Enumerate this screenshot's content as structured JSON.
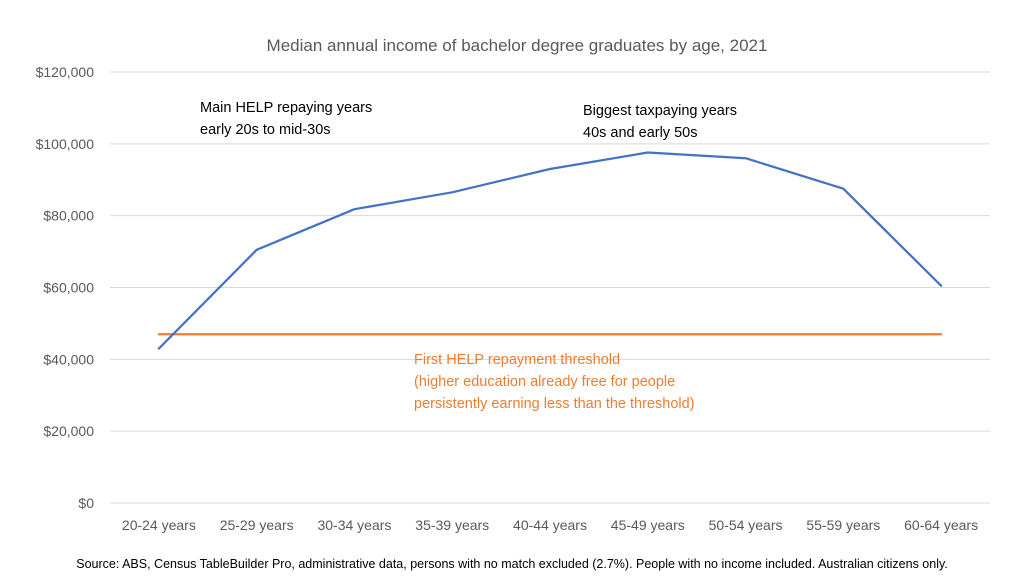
{
  "chart_data": {
    "type": "line",
    "title": "Median annual income of bachelor degree graduates by age, 2021",
    "categories": [
      "20-24 years",
      "25-29 years",
      "30-34 years",
      "35-39 years",
      "40-44 years",
      "45-49 years",
      "50-54 years",
      "55-59 years",
      "60-64 years"
    ],
    "series": [
      {
        "values": [
          43000,
          70500,
          81800,
          86500,
          93000,
          97600,
          96000,
          87500,
          60500
        ],
        "color": "#4472C4"
      },
      {
        "values": [
          47000,
          47000,
          47000,
          47000,
          47000,
          47000,
          47000,
          47000,
          47000
        ],
        "color": "#ED7D31"
      }
    ],
    "yticks": [
      "$0",
      "$20,000",
      "$40,000",
      "$60,000",
      "$80,000",
      "$100,000",
      "$120,000"
    ],
    "ylim": [
      0,
      120000
    ],
    "grid": true,
    "annotations": {
      "help_years": [
        "Main HELP repaying years",
        "early 20s to mid-30s"
      ],
      "tax_years": [
        "Biggest taxpaying years",
        "40s and early 50s"
      ],
      "threshold": [
        "First HELP repayment threshold",
        "(higher education already free for people",
        "persistently earning less than the threshold)"
      ]
    },
    "source": "Source: ABS, Census TableBuilder Pro, administrative data, persons with no match excluded  (2.7%). People with no income included. Australian citizens only."
  }
}
